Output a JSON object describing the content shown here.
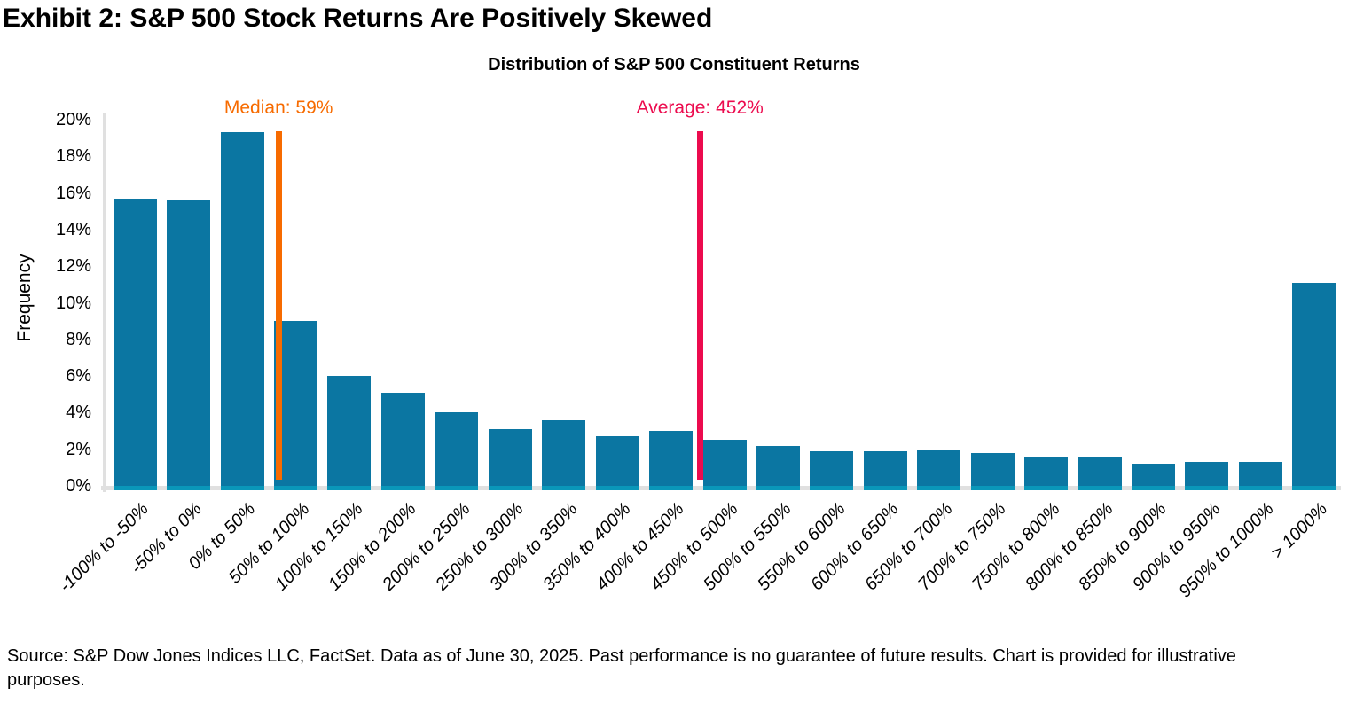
{
  "page": {
    "exhibit_title": "Exhibit 2: S&P 500 Stock Returns Are Positively Skewed",
    "footer": "Source: S&P Dow Jones Indices LLC, FactSet. Data as of June 30, 2025. Past performance is no guarantee of future results. Chart is provided for illustrative purposes."
  },
  "chart_data": {
    "type": "bar",
    "title": "Distribution of S&P 500 Constituent Returns",
    "xlabel": "",
    "ylabel": "Frequency",
    "ylim": [
      0,
      20
    ],
    "y_tick_step": 2,
    "y_ticks": [
      "0%",
      "2%",
      "4%",
      "6%",
      "8%",
      "10%",
      "12%",
      "14%",
      "16%",
      "18%",
      "20%"
    ],
    "grid": false,
    "legend": "none",
    "categories": [
      "-100% to -50%",
      "-50% to 0%",
      "0% to 50%",
      "50% to 100%",
      "100% to 150%",
      "150% to 200%",
      "200% to 250%",
      "250% to 300%",
      "300% to 350%",
      "350% to 400%",
      "400% to 450%",
      "450% to 500%",
      "500% to 550%",
      "550% to 600%",
      "600% to 650%",
      "650% to 700%",
      "700% to 750%",
      "750% to 800%",
      "800% to 850%",
      "850% to 900%",
      "900% to 950%",
      "950% to 1000%",
      "> 1000%"
    ],
    "values": [
      15.7,
      15.6,
      19.3,
      9.0,
      6.0,
      5.1,
      4.0,
      3.1,
      3.6,
      2.7,
      3.0,
      2.5,
      2.2,
      1.9,
      1.9,
      2.0,
      1.8,
      1.6,
      1.6,
      1.2,
      1.3,
      1.3,
      11.1
    ],
    "values_unit": "%",
    "bin_start": -100,
    "bin_width": 50,
    "bar_color": "#0B76A2",
    "bar_base_color": "#0A97B9",
    "axis_color": "#E0E0E0",
    "annotations": [
      {
        "label": "Median: 59%",
        "value": 59,
        "color": "#F76B00"
      },
      {
        "label": "Average: 452%",
        "value": 452,
        "color": "#EC0B4E"
      }
    ]
  }
}
